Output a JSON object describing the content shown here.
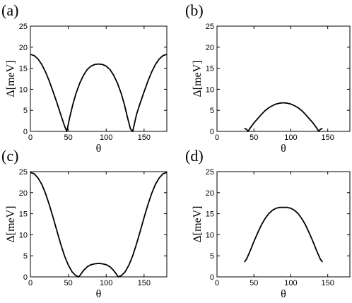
{
  "chart_data": [
    {
      "type": "line",
      "panel": "(a)",
      "xlabel": "θ",
      "ylabel": "Δ[meV]",
      "xlim": [
        0,
        180
      ],
      "ylim": [
        0,
        25
      ],
      "xticks": [
        0,
        50,
        100,
        150
      ],
      "yticks": [
        0,
        5,
        10,
        15,
        20,
        25
      ],
      "series": [
        {
          "x": [
            0,
            5,
            10,
            15,
            20,
            25,
            30,
            35,
            40,
            45,
            48,
            52,
            56,
            60,
            65,
            70,
            75,
            80,
            85,
            90,
            95,
            100,
            105,
            110,
            115,
            120,
            124,
            128,
            132,
            135,
            140,
            145,
            150,
            155,
            160,
            165,
            170,
            175,
            180
          ],
          "y": [
            18.3,
            18.0,
            17.2,
            15.9,
            14.1,
            11.9,
            9.4,
            6.8,
            4.0,
            1.3,
            0.0,
            3.4,
            6.4,
            8.9,
            11.4,
            13.3,
            14.7,
            15.5,
            15.9,
            16.0,
            15.9,
            15.5,
            14.7,
            13.3,
            11.4,
            8.9,
            6.4,
            3.4,
            0.6,
            0.0,
            4.0,
            6.8,
            9.4,
            11.9,
            14.1,
            15.9,
            17.2,
            18.0,
            18.3
          ]
        }
      ]
    },
    {
      "type": "line",
      "panel": "(b)",
      "xlabel": "θ",
      "ylabel": "Δ[meV]",
      "xlim": [
        0,
        180
      ],
      "ylim": [
        0,
        25
      ],
      "xticks": [
        0,
        50,
        100,
        150
      ],
      "yticks": [
        0,
        5,
        10,
        15,
        20,
        25
      ],
      "series": [
        {
          "x": [
            37,
            40,
            42,
            45,
            50,
            55,
            60,
            65,
            70,
            75,
            80,
            85,
            90,
            95,
            100,
            105,
            110,
            115,
            120,
            125,
            130,
            135,
            138,
            140,
            143
          ],
          "y": [
            0.7,
            0.5,
            0.0,
            0.8,
            2.0,
            3.0,
            4.0,
            4.9,
            5.6,
            6.1,
            6.5,
            6.7,
            6.8,
            6.7,
            6.5,
            6.1,
            5.6,
            4.9,
            4.0,
            3.0,
            2.0,
            0.8,
            0.0,
            0.5,
            0.7
          ]
        }
      ]
    },
    {
      "type": "line",
      "panel": "(c)",
      "xlabel": "θ",
      "ylabel": "Δ[meV]",
      "xlim": [
        0,
        180
      ],
      "ylim": [
        0,
        25
      ],
      "xticks": [
        0,
        50,
        100,
        150
      ],
      "yticks": [
        0,
        5,
        10,
        15,
        20,
        25
      ],
      "series": [
        {
          "x": [
            0,
            5,
            10,
            15,
            20,
            25,
            30,
            35,
            40,
            45,
            50,
            55,
            60,
            64,
            70,
            75,
            80,
            85,
            90,
            95,
            100,
            105,
            110,
            116,
            120,
            125,
            130,
            135,
            140,
            145,
            150,
            155,
            160,
            165,
            170,
            175,
            180
          ],
          "y": [
            24.8,
            24.5,
            23.5,
            22.0,
            19.8,
            17.1,
            14.1,
            10.9,
            7.8,
            5.0,
            2.8,
            1.2,
            0.3,
            0.0,
            1.5,
            2.4,
            2.9,
            3.1,
            3.2,
            3.1,
            2.9,
            2.4,
            1.5,
            0.0,
            0.3,
            1.2,
            2.8,
            5.0,
            7.8,
            10.9,
            14.1,
            17.1,
            19.8,
            22.0,
            23.5,
            24.5,
            24.8
          ]
        }
      ]
    },
    {
      "type": "line",
      "panel": "(d)",
      "xlabel": "θ",
      "ylabel": "Δ[meV]",
      "xlim": [
        0,
        180
      ],
      "ylim": [
        0,
        25
      ],
      "xticks": [
        0,
        50,
        100,
        150
      ],
      "yticks": [
        0,
        5,
        10,
        15,
        20,
        25
      ],
      "series": [
        {
          "x": [
            37,
            40,
            45,
            50,
            55,
            60,
            65,
            70,
            75,
            80,
            85,
            90,
            95,
            100,
            105,
            110,
            115,
            120,
            125,
            130,
            135,
            140,
            143
          ],
          "y": [
            3.5,
            4.2,
            6.2,
            8.4,
            10.4,
            12.3,
            13.8,
            15.0,
            15.8,
            16.3,
            16.5,
            16.5,
            16.5,
            16.3,
            15.8,
            15.0,
            13.8,
            12.3,
            10.4,
            8.4,
            6.2,
            4.2,
            3.5
          ]
        }
      ]
    }
  ]
}
